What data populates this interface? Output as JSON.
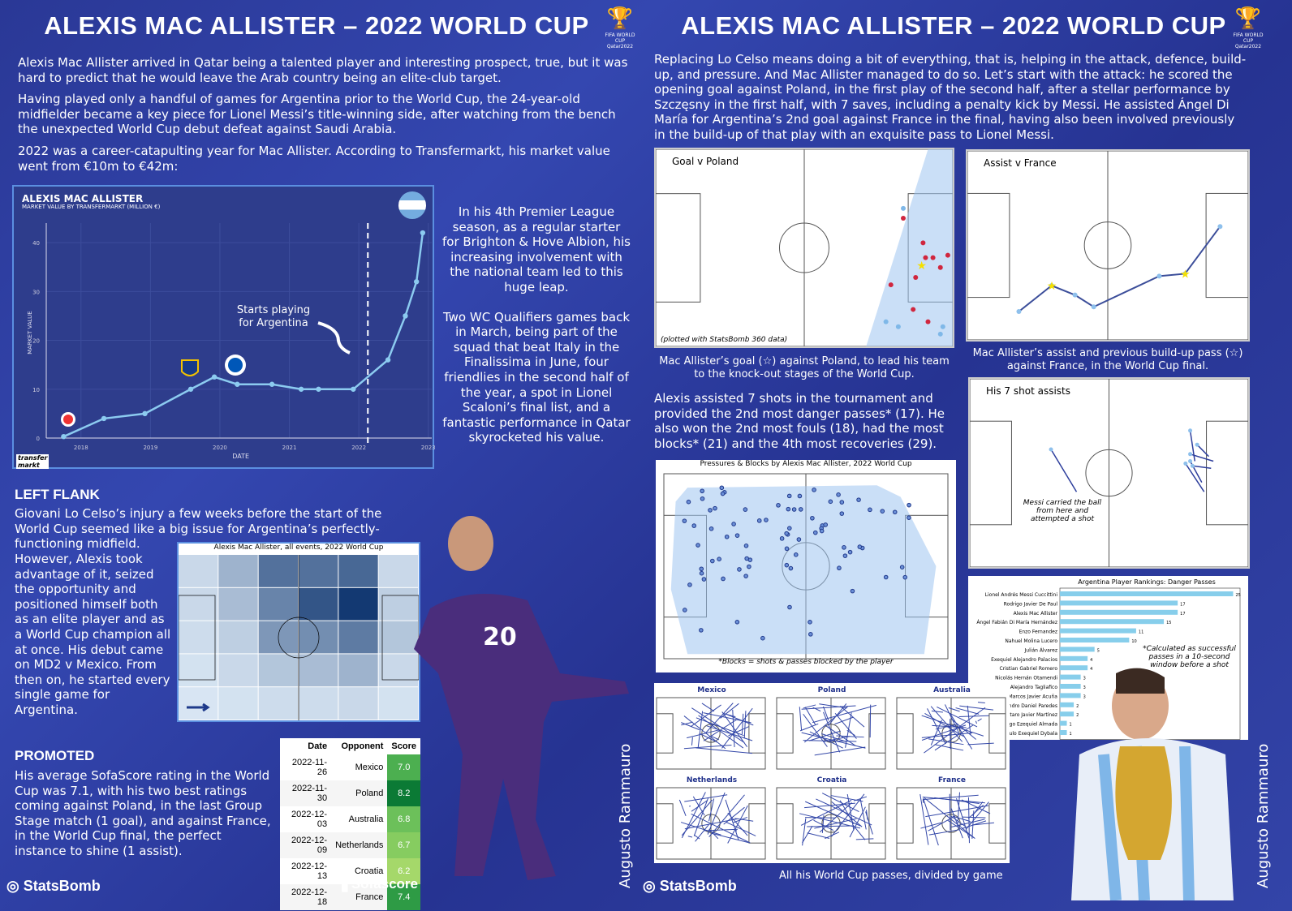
{
  "left": {
    "title": "ALEXIS MAC ALLISTER – 2022 WORLD CUP",
    "fifa_logo": "FIFA WORLD CUP Qatar2022",
    "intro": [
      "Alexis Mac Allister arrived in Qatar being a talented player and interesting prospect, true, but it was hard to predict that he would leave the Arab country being an elite-club target.",
      "Having played only a handful of games for Argentina prior to the World Cup, the 24-year-old midfielder became a key piece for Lionel Messi’s title-winning side, after watching from the bench the unexpected World Cup debut defeat against Saudi Arabia.",
      "2022 was a career-catapulting year for Mac Allister. According to Transfermarkt, his market value went from €10m to €42m:"
    ],
    "side_text_1": "In his 4th Premier League season, as a regular starter for Brighton & Hove Albion, his increasing involvement with the national team led to this huge leap.",
    "side_text_2": "Two WC Qualifiers games back in March, being part of the squad that beat Italy in the Finalissima in June, four friendlies in the second half of the year, a spot in Lionel Scaloni’s final list, and a fantastic performance in Qatar skyrocketed his value.",
    "left_flank_heading": "LEFT FLANK",
    "left_flank_text": "Giovani Lo Celso’s injury a few weeks before the start of the World Cup seemed like a big issue for Argentina’s perfectly-functioning midfield.",
    "left_flank_text_2": "However, Alexis took advantage of it, seized the opportunity and positioned himself both as an elite player and as a World Cup champion all at once. His debut came on MD2 v Mexico. From then on, he started every single game for Argentina.",
    "heatmap": {
      "title": "Alexis Mac Allister, all events, 2022 World Cup",
      "values": [
        [
          0.1,
          0.3,
          0.65,
          0.65,
          0.7,
          0.1
        ],
        [
          0.1,
          0.25,
          0.55,
          0.8,
          0.95,
          0.15
        ],
        [
          0.08,
          0.15,
          0.45,
          0.5,
          0.6,
          0.2
        ],
        [
          0.05,
          0.1,
          0.2,
          0.25,
          0.3,
          0.1
        ],
        [
          0.03,
          0.05,
          0.08,
          0.08,
          0.1,
          0.05
        ]
      ],
      "arrow": "attack-direction-arrow"
    },
    "promoted_heading": "PROMOTED",
    "promoted_text": "His average SofaScore rating in the World Cup was 7.1, with his two best ratings coming against Poland, in the last Group Stage match (1 goal), and against France, in the World Cup final, the perfect instance to shine (1 assist).",
    "ratings": {
      "headers": [
        "Date",
        "Opponent",
        "Score"
      ],
      "rows": [
        [
          "2022-11-26",
          "Mexico",
          "7.0",
          "#4caf50"
        ],
        [
          "2022-11-30",
          "Poland",
          "8.2",
          "#0b7a35"
        ],
        [
          "2022-12-03",
          "Australia",
          "6.8",
          "#6cc05a"
        ],
        [
          "2022-12-09",
          "Netherlands",
          "6.7",
          "#86cc60"
        ],
        [
          "2022-12-13",
          "Croatia",
          "6.2",
          "#a5d86a"
        ],
        [
          "2022-12-18",
          "France",
          "7.4",
          "#2e9b45"
        ]
      ]
    },
    "player_number": "20",
    "author": "Augusto Rammauro",
    "statsbomb": "StatsBomb",
    "sofascore": "Sofascore"
  },
  "chart_data": [
    {
      "type": "line",
      "title": "ALEXIS MAC ALLISTER",
      "subtitle": "MARKET VALUE BY TRANSFERMARKT (MILLION €)",
      "xlabel": "DATE",
      "ylabel": "MARKET VALUE",
      "xticks": [
        "2018",
        "2019",
        "2020",
        "2021",
        "2022",
        "2023"
      ],
      "yticks": [
        "0",
        "10",
        "20",
        "30",
        "40"
      ],
      "ylim": [
        0,
        44
      ],
      "xlim": [
        2017.5,
        2023.05
      ],
      "x": [
        2017.75,
        2018.33,
        2018.92,
        2019.58,
        2019.92,
        2020.25,
        2020.75,
        2021.17,
        2021.42,
        2021.92,
        2022.42,
        2022.67,
        2022.83,
        2022.92
      ],
      "y": [
        0.3,
        4,
        5,
        10,
        12.5,
        11,
        11,
        10,
        10,
        10,
        16,
        25,
        32,
        42
      ],
      "annotation": "Starts playing for Argentina",
      "annotation_x": 2022.13,
      "line_color": "#8ccbf0",
      "grid": true,
      "legend": "none",
      "source_logo": "transfermarkt"
    },
    {
      "type": "bar",
      "orientation": "horizontal",
      "title": "Argentina Player Rankings: Danger Passes",
      "categories": [
        "Lionel Andrés Messi Cuccittini",
        "Rodrigo Javier De Paul",
        "Alexis Mac Allister",
        "Ángel Fabián Di María Hernández",
        "Enzo Fernandez",
        "Nahuel Molina Lucero",
        "Julián Álvarez",
        "Exequiel Alejandro Palacios",
        "Cristian Gabriel Romero",
        "Nicolás Hernán Otamendi",
        "Nicolás Alejandro Tagliafico",
        "Marcos Javier Acuña",
        "Leandro Daniel Paredes",
        "Lautaro Javier Martínez",
        "Thiago Ezequiel Almada",
        "Paulo Exequiel Dybala"
      ],
      "values": [
        25,
        17,
        17,
        15,
        11,
        10,
        5,
        4,
        4,
        3,
        3,
        3,
        2,
        2,
        1,
        1
      ],
      "xticks": [
        "0",
        "5",
        "25"
      ],
      "xlim": [
        0,
        26
      ],
      "bar_color": "#87ceeb",
      "note": "*Calculated as successful passes in a 10-second window before a shot"
    }
  ],
  "right": {
    "title": "ALEXIS MAC ALLISTER – 2022 WORLD CUP",
    "intro": "Replacing Lo Celso means doing a bit of everything, that is, helping in the attack, defence, build-up, and pressure. And Mac Allister managed to do so. Let’s start with the attack: he scored the opening goal against Poland, in the first play of the second half, after a stellar performance by Szczęsny in the first half, with 7 saves, including a penalty kick by Messi. He assisted Ángel Di María for Argentina’s 2nd goal against France in the final, having also been involved previously in the build-up of that play with an exquisite pass to Lionel Messi.",
    "goal_title": "Goal v Poland",
    "goal_note": "(plotted with StatsBomb 360 data)",
    "goal_caption": "Mac Allister’s goal (☆) against Poland, to lead his team to the knock-out stages of the World Cup.",
    "assist_title": "Assist v France",
    "assist_caption": "Mac Allister’s assist and previous build-up pass (☆) against France, in the World Cup final.",
    "stats_text": "Alexis assisted 7 shots in the tournament and provided the 2nd most danger passes* (17). He also won the 2nd most fouls (18), had the most blocks* (21) and the 4th most recoveries (29).",
    "shot_assists_title": "His 7 shot assists",
    "shot_assists_note": "Messi carried the ball from here and attempted a shot",
    "pressures_title": "Pressures & Blocks by Alexis Mac Allister, 2022 World Cup",
    "pressures_note": "*Blocks = shots & passes blocked by the player",
    "passmaps": [
      "Mexico",
      "Poland",
      "Australia",
      "Netherlands",
      "Croatia",
      "France"
    ],
    "passmaps_caption": "All his World Cup passes, divided by game",
    "author": "Augusto Rammauro",
    "statsbomb": "StatsBomb"
  },
  "colors": {
    "background": "#2b3a9e",
    "accent": "#8ccbf0",
    "heat_dark": "#08306b",
    "heat_light": "#deebf7"
  }
}
